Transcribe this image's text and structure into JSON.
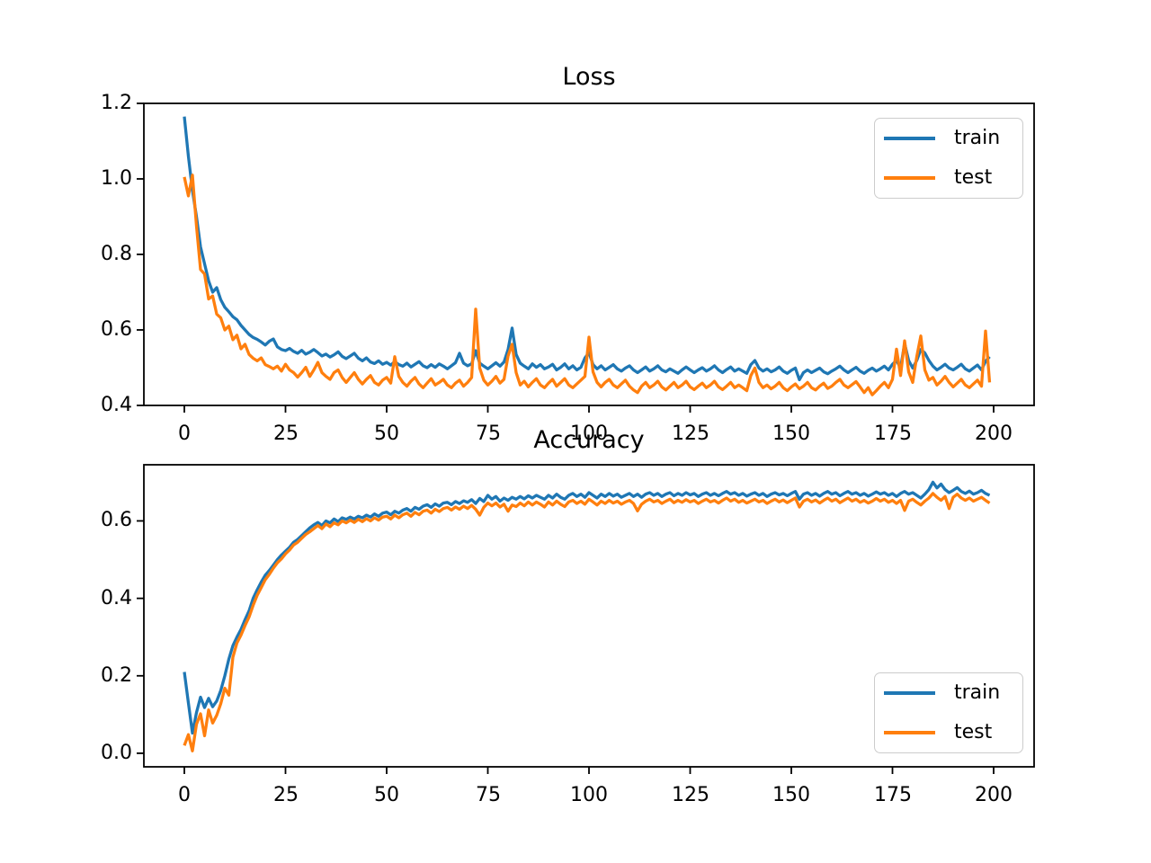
{
  "figure": {
    "background": "#ffffff",
    "text_color": "#000000",
    "spine_color": "#000000",
    "legend_border_color": "#cccccc"
  },
  "chart_data": [
    {
      "type": "line",
      "title": "Loss",
      "x_ticks": [
        "0",
        "25",
        "50",
        "75",
        "100",
        "125",
        "150",
        "175",
        "200"
      ],
      "y_ticks": [
        "0.4",
        "0.6",
        "0.8",
        "1.0",
        "1.2"
      ],
      "xlim": [
        -10,
        210
      ],
      "ylim": [
        0.4,
        1.2
      ],
      "grid": false,
      "legend": {
        "position": "upper right"
      },
      "series": [
        {
          "name": "train",
          "color": "#1f77b4",
          "values": [
            1.165,
            1.06,
            0.97,
            0.9,
            0.82,
            0.775,
            0.73,
            0.7,
            0.712,
            0.68,
            0.66,
            0.648,
            0.635,
            0.627,
            0.612,
            0.6,
            0.588,
            0.58,
            0.575,
            0.568,
            0.56,
            0.57,
            0.576,
            0.555,
            0.548,
            0.545,
            0.551,
            0.543,
            0.538,
            0.546,
            0.536,
            0.541,
            0.548,
            0.54,
            0.531,
            0.536,
            0.528,
            0.534,
            0.542,
            0.53,
            0.524,
            0.531,
            0.538,
            0.525,
            0.518,
            0.526,
            0.515,
            0.511,
            0.518,
            0.509,
            0.514,
            0.507,
            0.516,
            0.508,
            0.504,
            0.512,
            0.502,
            0.509,
            0.516,
            0.505,
            0.5,
            0.508,
            0.501,
            0.51,
            0.504,
            0.497,
            0.505,
            0.513,
            0.538,
            0.512,
            0.505,
            0.51,
            0.545,
            0.512,
            0.504,
            0.497,
            0.505,
            0.513,
            0.504,
            0.515,
            0.548,
            0.605,
            0.535,
            0.512,
            0.504,
            0.497,
            0.51,
            0.501,
            0.508,
            0.497,
            0.502,
            0.509,
            0.494,
            0.501,
            0.51,
            0.497,
            0.505,
            0.494,
            0.501,
            0.526,
            0.54,
            0.508,
            0.497,
            0.505,
            0.494,
            0.501,
            0.508,
            0.497,
            0.491,
            0.499,
            0.505,
            0.494,
            0.487,
            0.494,
            0.502,
            0.491,
            0.497,
            0.505,
            0.494,
            0.489,
            0.497,
            0.491,
            0.485,
            0.494,
            0.502,
            0.494,
            0.487,
            0.494,
            0.5,
            0.491,
            0.497,
            0.505,
            0.494,
            0.487,
            0.495,
            0.502,
            0.491,
            0.497,
            0.491,
            0.485,
            0.508,
            0.519,
            0.499,
            0.491,
            0.497,
            0.489,
            0.494,
            0.502,
            0.491,
            0.485,
            0.493,
            0.499,
            0.468,
            0.487,
            0.494,
            0.487,
            0.493,
            0.499,
            0.489,
            0.484,
            0.491,
            0.497,
            0.504,
            0.494,
            0.487,
            0.494,
            0.501,
            0.491,
            0.485,
            0.493,
            0.499,
            0.491,
            0.497,
            0.504,
            0.494,
            0.509,
            0.519,
            0.499,
            0.564,
            0.519,
            0.499,
            0.519,
            0.548,
            0.539,
            0.519,
            0.504,
            0.494,
            0.501,
            0.509,
            0.499,
            0.494,
            0.501,
            0.509,
            0.497,
            0.491,
            0.499,
            0.507,
            0.494,
            0.517,
            0.529
          ]
        },
        {
          "name": "test",
          "color": "#ff7f0e",
          "values": [
            1.005,
            0.955,
            1.01,
            0.875,
            0.76,
            0.748,
            0.682,
            0.69,
            0.642,
            0.632,
            0.6,
            0.61,
            0.574,
            0.586,
            0.55,
            0.562,
            0.535,
            0.525,
            0.518,
            0.526,
            0.508,
            0.503,
            0.497,
            0.504,
            0.491,
            0.509,
            0.494,
            0.487,
            0.475,
            0.487,
            0.501,
            0.477,
            0.494,
            0.514,
            0.487,
            0.477,
            0.469,
            0.487,
            0.494,
            0.474,
            0.461,
            0.474,
            0.487,
            0.469,
            0.457,
            0.469,
            0.479,
            0.461,
            0.454,
            0.467,
            0.474,
            0.459,
            0.529,
            0.477,
            0.461,
            0.451,
            0.464,
            0.474,
            0.457,
            0.447,
            0.459,
            0.471,
            0.454,
            0.461,
            0.469,
            0.454,
            0.447,
            0.459,
            0.467,
            0.451,
            0.461,
            0.474,
            0.655,
            0.499,
            0.467,
            0.454,
            0.464,
            0.477,
            0.459,
            0.469,
            0.531,
            0.562,
            0.487,
            0.454,
            0.464,
            0.449,
            0.461,
            0.471,
            0.454,
            0.447,
            0.459,
            0.469,
            0.451,
            0.461,
            0.471,
            0.454,
            0.447,
            0.457,
            0.467,
            0.477,
            0.581,
            0.489,
            0.461,
            0.449,
            0.461,
            0.469,
            0.454,
            0.447,
            0.457,
            0.467,
            0.451,
            0.441,
            0.434,
            0.451,
            0.461,
            0.447,
            0.454,
            0.464,
            0.449,
            0.441,
            0.451,
            0.461,
            0.447,
            0.454,
            0.464,
            0.449,
            0.442,
            0.451,
            0.459,
            0.447,
            0.454,
            0.464,
            0.449,
            0.442,
            0.451,
            0.461,
            0.447,
            0.454,
            0.447,
            0.439,
            0.479,
            0.499,
            0.461,
            0.447,
            0.454,
            0.444,
            0.451,
            0.461,
            0.447,
            0.439,
            0.449,
            0.457,
            0.444,
            0.451,
            0.461,
            0.447,
            0.441,
            0.451,
            0.459,
            0.445,
            0.451,
            0.461,
            0.469,
            0.454,
            0.447,
            0.455,
            0.463,
            0.449,
            0.434,
            0.447,
            0.428,
            0.439,
            0.451,
            0.461,
            0.447,
            0.469,
            0.549,
            0.479,
            0.571,
            0.489,
            0.461,
            0.529,
            0.584,
            0.494,
            0.467,
            0.474,
            0.454,
            0.464,
            0.477,
            0.461,
            0.449,
            0.459,
            0.469,
            0.454,
            0.447,
            0.457,
            0.467,
            0.451,
            0.597,
            0.461
          ]
        }
      ]
    },
    {
      "type": "line",
      "title": "Accuracy",
      "x_ticks": [
        "0",
        "25",
        "50",
        "75",
        "100",
        "125",
        "150",
        "175",
        "200"
      ],
      "y_ticks": [
        "0.0",
        "0.2",
        "0.4",
        "0.6"
      ],
      "xlim": [
        -10,
        210
      ],
      "ylim": [
        -0.035,
        0.745
      ],
      "grid": false,
      "legend": {
        "position": "lower right"
      },
      "series": [
        {
          "name": "train",
          "color": "#1f77b4",
          "values": [
            0.21,
            0.13,
            0.052,
            0.105,
            0.145,
            0.118,
            0.142,
            0.12,
            0.135,
            0.162,
            0.2,
            0.243,
            0.278,
            0.3,
            0.32,
            0.345,
            0.368,
            0.4,
            0.422,
            0.442,
            0.46,
            0.472,
            0.486,
            0.5,
            0.512,
            0.522,
            0.532,
            0.545,
            0.552,
            0.562,
            0.572,
            0.582,
            0.59,
            0.596,
            0.588,
            0.6,
            0.595,
            0.605,
            0.598,
            0.608,
            0.604,
            0.61,
            0.605,
            0.612,
            0.608,
            0.615,
            0.61,
            0.618,
            0.612,
            0.62,
            0.623,
            0.616,
            0.625,
            0.62,
            0.628,
            0.632,
            0.625,
            0.635,
            0.63,
            0.638,
            0.642,
            0.635,
            0.644,
            0.638,
            0.646,
            0.648,
            0.642,
            0.65,
            0.645,
            0.652,
            0.648,
            0.655,
            0.645,
            0.658,
            0.65,
            0.666,
            0.656,
            0.663,
            0.651,
            0.659,
            0.653,
            0.661,
            0.656,
            0.663,
            0.657,
            0.665,
            0.659,
            0.666,
            0.661,
            0.656,
            0.666,
            0.659,
            0.669,
            0.661,
            0.656,
            0.666,
            0.671,
            0.663,
            0.669,
            0.661,
            0.673,
            0.666,
            0.659,
            0.669,
            0.663,
            0.671,
            0.664,
            0.669,
            0.661,
            0.666,
            0.671,
            0.663,
            0.669,
            0.661,
            0.669,
            0.673,
            0.666,
            0.671,
            0.663,
            0.669,
            0.673,
            0.665,
            0.671,
            0.666,
            0.673,
            0.667,
            0.671,
            0.663,
            0.669,
            0.673,
            0.666,
            0.671,
            0.665,
            0.671,
            0.676,
            0.669,
            0.673,
            0.666,
            0.671,
            0.664,
            0.669,
            0.673,
            0.666,
            0.671,
            0.663,
            0.669,
            0.673,
            0.667,
            0.671,
            0.665,
            0.671,
            0.676,
            0.656,
            0.669,
            0.673,
            0.666,
            0.671,
            0.664,
            0.671,
            0.676,
            0.669,
            0.673,
            0.665,
            0.671,
            0.676,
            0.669,
            0.673,
            0.666,
            0.671,
            0.664,
            0.669,
            0.675,
            0.669,
            0.673,
            0.666,
            0.671,
            0.663,
            0.671,
            0.676,
            0.669,
            0.673,
            0.666,
            0.659,
            0.669,
            0.681,
            0.7,
            0.685,
            0.695,
            0.681,
            0.673,
            0.679,
            0.686,
            0.676,
            0.671,
            0.677,
            0.669,
            0.673,
            0.679,
            0.671,
            0.666
          ]
        },
        {
          "name": "test",
          "color": "#ff7f0e",
          "values": [
            0.02,
            0.048,
            0.006,
            0.075,
            0.102,
            0.045,
            0.112,
            0.078,
            0.098,
            0.128,
            0.168,
            0.15,
            0.248,
            0.285,
            0.305,
            0.33,
            0.352,
            0.382,
            0.408,
            0.428,
            0.448,
            0.462,
            0.478,
            0.492,
            0.502,
            0.515,
            0.525,
            0.538,
            0.545,
            0.555,
            0.565,
            0.572,
            0.58,
            0.588,
            0.58,
            0.592,
            0.585,
            0.595,
            0.59,
            0.6,
            0.595,
            0.602,
            0.596,
            0.604,
            0.598,
            0.606,
            0.6,
            0.608,
            0.602,
            0.61,
            0.612,
            0.605,
            0.615,
            0.608,
            0.616,
            0.62,
            0.612,
            0.622,
            0.616,
            0.625,
            0.628,
            0.62,
            0.63,
            0.624,
            0.632,
            0.635,
            0.628,
            0.636,
            0.63,
            0.638,
            0.632,
            0.64,
            0.63,
            0.615,
            0.635,
            0.646,
            0.639,
            0.646,
            0.636,
            0.643,
            0.625,
            0.641,
            0.637,
            0.646,
            0.639,
            0.649,
            0.641,
            0.649,
            0.643,
            0.636,
            0.649,
            0.641,
            0.651,
            0.643,
            0.637,
            0.649,
            0.653,
            0.645,
            0.651,
            0.643,
            0.656,
            0.649,
            0.641,
            0.651,
            0.645,
            0.653,
            0.646,
            0.651,
            0.643,
            0.649,
            0.653,
            0.645,
            0.626,
            0.643,
            0.651,
            0.656,
            0.649,
            0.653,
            0.645,
            0.651,
            0.656,
            0.647,
            0.653,
            0.648,
            0.655,
            0.649,
            0.653,
            0.645,
            0.651,
            0.656,
            0.649,
            0.653,
            0.646,
            0.653,
            0.659,
            0.651,
            0.656,
            0.648,
            0.653,
            0.646,
            0.651,
            0.656,
            0.649,
            0.653,
            0.645,
            0.651,
            0.656,
            0.649,
            0.654,
            0.647,
            0.653,
            0.659,
            0.636,
            0.651,
            0.656,
            0.649,
            0.654,
            0.646,
            0.653,
            0.659,
            0.651,
            0.656,
            0.647,
            0.653,
            0.659,
            0.651,
            0.656,
            0.648,
            0.653,
            0.646,
            0.651,
            0.658,
            0.651,
            0.656,
            0.648,
            0.653,
            0.645,
            0.653,
            0.627,
            0.651,
            0.656,
            0.648,
            0.641,
            0.651,
            0.659,
            0.671,
            0.661,
            0.653,
            0.663,
            0.632,
            0.661,
            0.669,
            0.659,
            0.653,
            0.659,
            0.651,
            0.656,
            0.661,
            0.653,
            0.646
          ]
        }
      ]
    }
  ]
}
